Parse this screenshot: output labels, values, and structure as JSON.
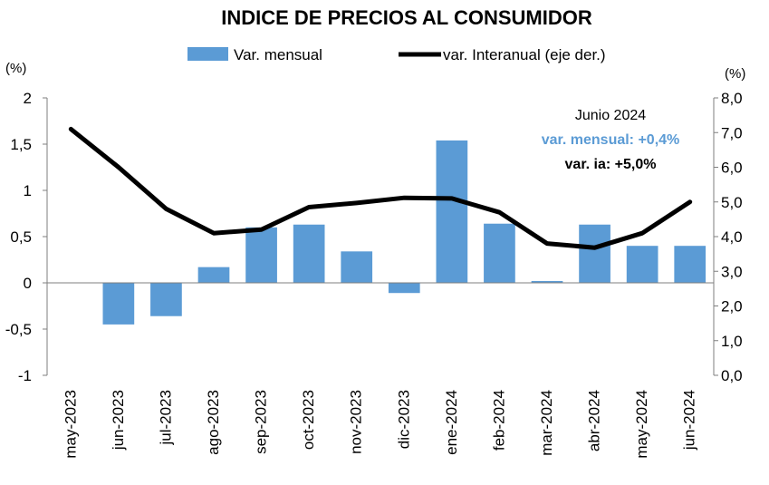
{
  "chart_data": {
    "type": "bar",
    "title": "INDICE DE PRECIOS AL CONSUMIDOR",
    "categories": [
      "may-2023",
      "jun-2023",
      "jul-2023",
      "ago-2023",
      "sep-2023",
      "oct-2023",
      "nov-2023",
      "dic-2023",
      "ene-2024",
      "feb-2024",
      "mar-2024",
      "abr-2024",
      "may-2024",
      "jun-2024"
    ],
    "series": [
      {
        "name": "Var. mensual",
        "type": "bar",
        "axis": "left",
        "color": "#5b9bd5",
        "values": [
          null,
          -0.45,
          -0.36,
          0.17,
          0.6,
          0.63,
          0.34,
          -0.11,
          1.54,
          0.64,
          0.02,
          0.63,
          0.4,
          0.4
        ]
      },
      {
        "name": "var. Interanual (eje der.)",
        "type": "line",
        "axis": "right",
        "color": "#000000",
        "values": [
          7.1,
          6.0,
          4.8,
          4.1,
          4.2,
          4.85,
          4.97,
          5.12,
          5.1,
          4.7,
          3.8,
          3.68,
          4.1,
          5.0
        ]
      }
    ],
    "y_left": {
      "unit_label": "(%)",
      "ylim": [
        -1,
        2
      ],
      "ticks": [
        "2",
        "1,5",
        "1",
        "0,5",
        "0",
        "-0,5",
        "-1"
      ],
      "tick_values": [
        2,
        1.5,
        1,
        0.5,
        0,
        -0.5,
        -1
      ]
    },
    "y_right": {
      "unit_label": "(%)",
      "ylim": [
        0,
        8
      ],
      "ticks": [
        "8,0",
        "7,0",
        "6,0",
        "5,0",
        "4,0",
        "3,0",
        "2,0",
        "1,0",
        "0,0"
      ],
      "tick_values": [
        8,
        7,
        6,
        5,
        4,
        3,
        2,
        1,
        0
      ]
    },
    "legend_position": "top",
    "grid": false,
    "annotation": {
      "heading": "Junio 2024",
      "mensual": "var. mensual: +0,4%",
      "interanual": "var. ia: +5,0%",
      "mensual_color": "#5b9bd5"
    }
  }
}
